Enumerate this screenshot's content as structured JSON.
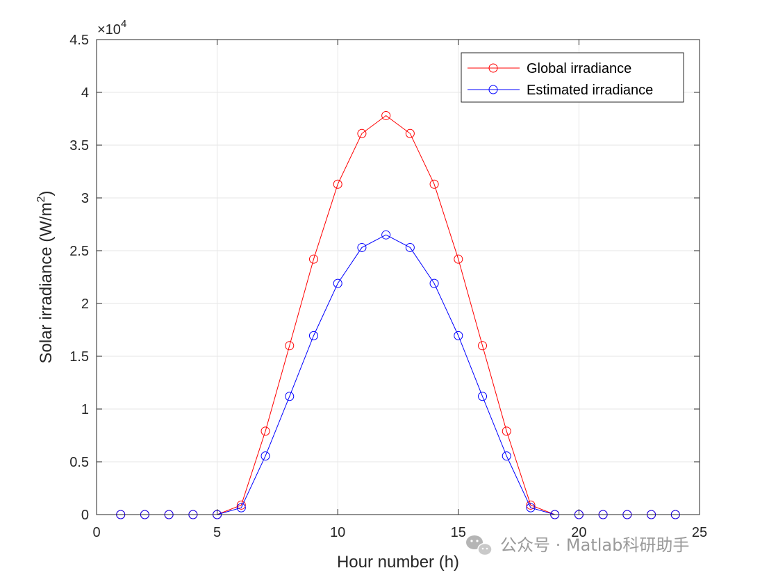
{
  "chart_data": {
    "type": "line",
    "title": "",
    "xlabel": "Hour number (h)",
    "ylabel_main": "Solar irradiance (W/m",
    "ylabel_sup": "2",
    "ylabel_close": ")",
    "xlim": [
      0,
      25
    ],
    "ylim": [
      0,
      45000
    ],
    "x_ticks": [
      0,
      5,
      10,
      15,
      20,
      25
    ],
    "x_tick_labels": [
      "0",
      "5",
      "10",
      "15",
      "20",
      "25"
    ],
    "y_ticks": [
      0,
      5000,
      10000,
      15000,
      20000,
      25000,
      30000,
      35000,
      40000,
      45000
    ],
    "y_tick_labels": [
      "0",
      "0.5",
      "1",
      "1.5",
      "2",
      "2.5",
      "3",
      "3.5",
      "4",
      "4.5"
    ],
    "y_exponent_base": "×10",
    "y_exponent_power": "4",
    "grid": true,
    "legend_position": "top-right",
    "x": [
      1,
      2,
      3,
      4,
      5,
      6,
      7,
      8,
      9,
      10,
      11,
      12,
      13,
      14,
      15,
      16,
      17,
      18,
      19,
      20,
      21,
      22,
      23,
      24
    ],
    "series": [
      {
        "name": "Global irradiance",
        "color": "#ff0000",
        "marker": "circle",
        "values": [
          0,
          0,
          0,
          0,
          0,
          900,
          7900,
          16000,
          24200,
          31300,
          36100,
          37800,
          36100,
          31300,
          24200,
          16000,
          7900,
          900,
          0,
          0,
          0,
          0,
          0,
          0
        ]
      },
      {
        "name": "Estimated irradiance",
        "color": "#0000ff",
        "marker": "circle",
        "values": [
          0,
          0,
          0,
          0,
          0,
          650,
          5550,
          11200,
          16950,
          21900,
          25300,
          26500,
          25300,
          21900,
          16950,
          11200,
          5550,
          650,
          0,
          0,
          0,
          0,
          0,
          0
        ]
      }
    ]
  },
  "watermark": {
    "text": "公众号 · Matlab科研助手",
    "icon": "wechat-icon"
  }
}
